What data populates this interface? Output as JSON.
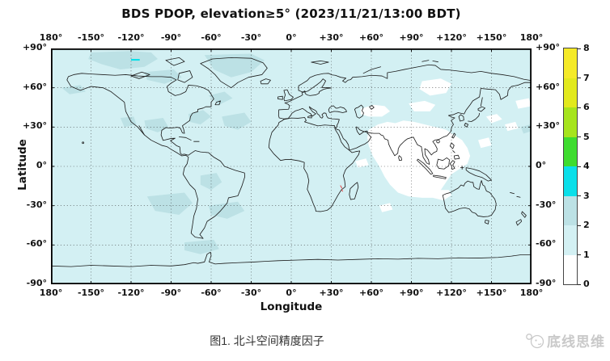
{
  "title": "BDS PDOP, elevation≥5° (2023/11/21/13:00 BDT)",
  "axes": {
    "x_label": "Longitude",
    "y_label": "Latitude",
    "x_ticks": [
      "180°",
      "-150°",
      "-120°",
      "-90°",
      "-60°",
      "-30°",
      "0°",
      "+30°",
      "+60°",
      "+90°",
      "+120°",
      "+150°",
      "180°"
    ],
    "y_ticks": [
      "+90°",
      "+60°",
      "+30°",
      "0°",
      "-30°",
      "-60°",
      "-90°"
    ]
  },
  "colorbar": {
    "min": 0,
    "max": 8,
    "ticks": [
      "0",
      "1",
      "2",
      "3",
      "4",
      "5",
      "6",
      "7",
      "8"
    ],
    "segments": [
      {
        "range": "0-1",
        "color": "#ffffff"
      },
      {
        "range": "1-2",
        "color": "#d3f0f3"
      },
      {
        "range": "2-3",
        "color": "#bce1e5"
      },
      {
        "range": "3-4",
        "color": "#0adfe9"
      },
      {
        "range": "4-5",
        "color": "#3edc2f"
      },
      {
        "range": "5-6",
        "color": "#a6e41d"
      },
      {
        "range": "6-7",
        "color": "#e2e91d"
      },
      {
        "range": "7-8",
        "color": "#f5ea28"
      }
    ]
  },
  "caption": "图1. 北斗空间精度因子",
  "watermark": {
    "text": "底线思维",
    "icon": "sketch-mascot-logo"
  },
  "colors": {
    "pdop_0_1": "#ffffff",
    "pdop_1_2": "#d3f0f3",
    "pdop_2_3": "#bce1e5",
    "pdop_3_4": "#0adfe9",
    "coastline": "#1c1c1c",
    "grid": "#333333",
    "frame": "#000000",
    "red_mark": "#e03434",
    "watermark_gray": "#c9c9c9"
  },
  "chart_data": {
    "type": "heatmap",
    "subtype": "world-map-contour (equirectangular projection with coastlines)",
    "title": "BDS PDOP, elevation≥5° (2023/11/21/13:00 BDT)",
    "xlabel": "Longitude",
    "ylabel": "Latitude",
    "xlim": [
      -180,
      180
    ],
    "ylim": [
      -90,
      90
    ],
    "x_tick_step_deg": 30,
    "y_tick_step_deg": 30,
    "grid": "dotted, every 30 degrees",
    "colorbar": {
      "quantity": "PDOP",
      "range": [
        0,
        8
      ],
      "tick_step": 1,
      "position": "right"
    },
    "regions": [
      {
        "area": "global background (most oceans and continents)",
        "pdop_value": "1-2"
      },
      {
        "area": "Asia-Pacific core: India, Central Asia, Siberia patches, Southeast Asia, eastern Indian Ocean, NW Australia, W Pacific patches",
        "pdop_value": "0-1"
      },
      {
        "area": "scattered patches: Arctic Canada, Greenland, SW USA/Mexico, W & central North Atlantic, Brazil, SE Pacific off Chile, South Atlantic, Antarctic Peninsula",
        "pdop_value": "2-3"
      },
      {
        "area": "small streak in high Arctic near 117°W, 81°N",
        "pdop_value": "3-4"
      },
      {
        "area": "tiny red-flagged coastline segment near Mozambique (~37°E, 16°S)",
        "pdop_value": "flagged"
      }
    ]
  }
}
